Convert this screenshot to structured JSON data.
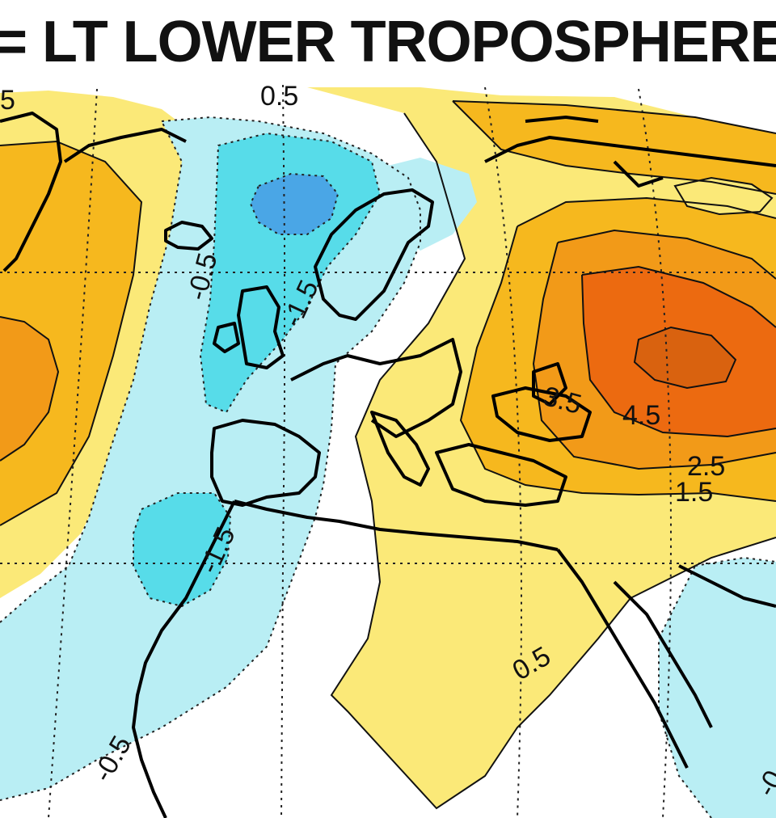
{
  "title": "= LT LOWER TROPOSPHERE",
  "legend_colors": {
    "very_warm": "#ec6a10",
    "warmer": "#f29a18",
    "warm": "#f6b81e",
    "slightly_warm": "#fbe978",
    "neutral": "#ffffff",
    "slightly_cool": "#b9eef4",
    "cool": "#57dce9",
    "cold": "#4aa6e6",
    "coastline": "#000000"
  },
  "contour_labels": {
    "top_left": "5",
    "top_center": "0.5",
    "atlantic_neg_half": "-0.5",
    "britain_neg": "-1.5",
    "iberia_neg": "-1.5",
    "asia_3_5": "3.5",
    "asia_4_5": "4.5",
    "asia_2_5": "2.5",
    "asia_1_5": "1.5",
    "africa_0_5": "0.5",
    "bottom_left": "-0.5",
    "bottom_right": "-0"
  }
}
